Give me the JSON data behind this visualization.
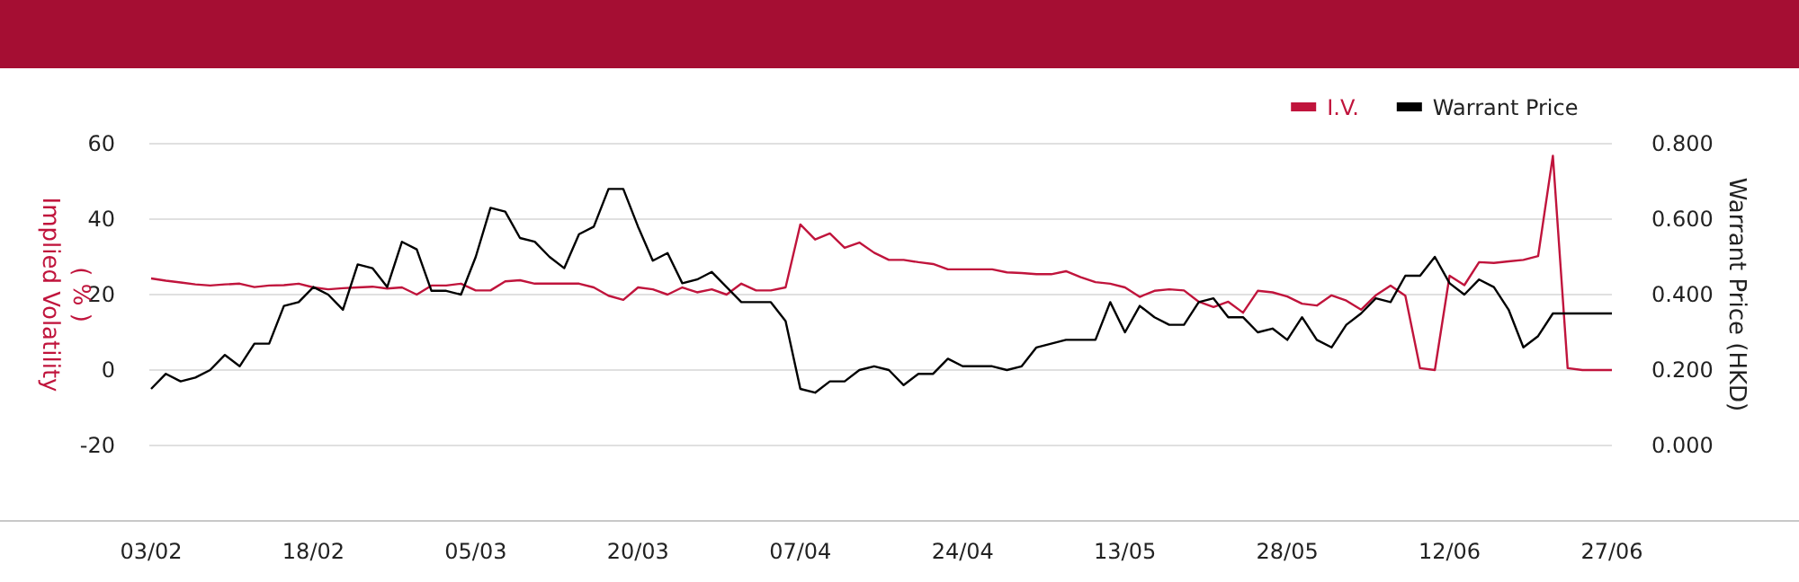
{
  "chart_data": {
    "type": "line",
    "ylabel": "Implied Volatility ( % )",
    "y2label": "Warrant Price (HKD)",
    "categories": [
      "03/02",
      null,
      null,
      null,
      null,
      null,
      null,
      null,
      null,
      null,
      null,
      "18/02",
      null,
      null,
      null,
      null,
      null,
      null,
      null,
      null,
      null,
      null,
      "05/03",
      null,
      null,
      null,
      null,
      null,
      null,
      null,
      null,
      null,
      null,
      "20/03",
      null,
      null,
      null,
      null,
      null,
      null,
      null,
      null,
      null,
      null,
      "07/04",
      null,
      null,
      null,
      null,
      null,
      null,
      null,
      null,
      null,
      null,
      "24/04",
      null,
      null,
      null,
      null,
      null,
      null,
      null,
      null,
      null,
      null,
      "13/05",
      null,
      null,
      null,
      null,
      null,
      null,
      null,
      null,
      null,
      null,
      "28/05",
      null,
      null,
      null,
      null,
      null,
      null,
      null,
      null,
      null,
      null,
      "12/06",
      null,
      null,
      null,
      null,
      null,
      null,
      null,
      null,
      null,
      null,
      "27/06"
    ],
    "ylim": [
      -40,
      60
    ],
    "yticks": [
      -20,
      0,
      20,
      40,
      60
    ],
    "y2lim": [
      -0.2,
      0.8
    ],
    "y2ticks": [
      {
        "value": 0,
        "label": "0.000"
      },
      {
        "value": 0.2,
        "label": "0.200"
      },
      {
        "value": 0.4,
        "label": "0.400"
      },
      {
        "value": 0.6,
        "label": "0.600"
      },
      {
        "value": 0.8,
        "label": "0.800"
      }
    ],
    "grid": "y",
    "legend": "top right",
    "marker": "none",
    "line_style": "solid",
    "series": [
      {
        "name": "I.V.",
        "color": "#c0143c",
        "values": [
          24.3,
          23.7,
          23.2,
          22.7,
          22.4,
          22.7,
          22.9,
          22.0,
          22.4,
          22.5,
          22.9,
          21.9,
          21.4,
          21.7,
          21.9,
          22.1,
          21.6,
          21.9,
          20.0,
          22.4,
          22.4,
          22.9,
          21.1,
          21.1,
          23.5,
          23.8,
          22.9,
          22.9,
          22.9,
          22.9,
          21.9,
          19.7,
          18.6,
          21.9,
          21.4,
          20.0,
          21.9,
          20.6,
          21.4,
          20.0,
          22.9,
          21.1,
          21.1,
          21.9,
          38.6,
          34.6,
          36.2,
          32.4,
          33.8,
          31.1,
          29.2,
          29.2,
          28.6,
          28.1,
          26.7,
          26.7,
          26.7,
          26.7,
          25.9,
          25.7,
          25.4,
          25.4,
          26.2,
          24.6,
          23.3,
          22.9,
          21.9,
          19.4,
          21.0,
          21.4,
          21.1,
          18.1,
          16.7,
          18.1,
          15.2,
          21.0,
          20.6,
          19.5,
          17.6,
          17.1,
          19.8,
          18.4,
          16.0,
          19.8,
          22.4,
          19.7,
          0.5,
          0.0,
          25.0,
          22.5,
          28.6,
          28.4,
          28.8,
          29.2,
          30.2,
          56.8,
          0.5,
          0.0,
          0.0,
          0.0
        ]
      },
      {
        "name": "Warrant Price",
        "color": "#000000",
        "axis": "y2",
        "values": [
          0.15,
          0.19,
          0.17,
          0.18,
          0.2,
          0.24,
          0.21,
          0.27,
          0.27,
          0.37,
          0.38,
          0.42,
          0.4,
          0.36,
          0.48,
          0.47,
          0.42,
          0.54,
          0.52,
          0.41,
          0.41,
          0.4,
          0.5,
          0.63,
          0.62,
          0.55,
          0.54,
          0.5,
          0.47,
          0.56,
          0.58,
          0.68,
          0.68,
          0.58,
          0.49,
          0.51,
          0.43,
          0.44,
          0.46,
          0.42,
          0.38,
          0.38,
          0.38,
          0.33,
          0.15,
          0.14,
          0.17,
          0.17,
          0.2,
          0.21,
          0.2,
          0.16,
          0.19,
          0.19,
          0.23,
          0.21,
          0.21,
          0.21,
          0.2,
          0.21,
          0.26,
          0.27,
          0.28,
          0.28,
          0.28,
          0.38,
          0.3,
          0.37,
          0.34,
          0.32,
          0.32,
          0.38,
          0.39,
          0.34,
          0.34,
          0.3,
          0.31,
          0.28,
          0.34,
          0.28,
          0.26,
          0.32,
          0.35,
          0.39,
          0.38,
          0.45,
          0.45,
          0.5,
          0.43,
          0.4,
          0.44,
          0.42,
          0.36,
          0.26,
          0.29,
          0.35,
          0.35,
          0.35,
          0.35,
          0.35
        ]
      }
    ]
  }
}
